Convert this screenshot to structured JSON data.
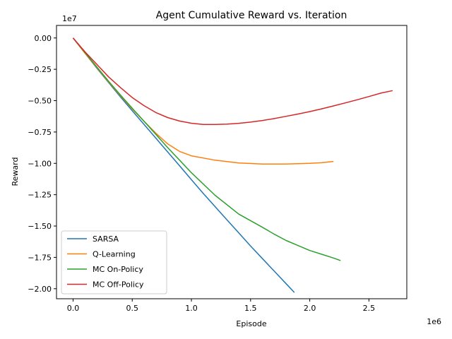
{
  "chart_data": {
    "type": "line",
    "title": "Agent Cumulative Reward vs. Iteration",
    "xlabel": "Episode",
    "ylabel": "Reward",
    "x_scale_label": "1e6",
    "y_scale_label": "1e7",
    "xlim": [
      -0.14,
      2.82
    ],
    "ylim": [
      -2.08,
      0.1
    ],
    "x_ticks": [
      0.0,
      0.5,
      1.0,
      1.5,
      2.0,
      2.5
    ],
    "x_tick_labels": [
      "0.0",
      "0.5",
      "1.0",
      "1.5",
      "2.0",
      "2.5"
    ],
    "y_ticks": [
      0.0,
      -0.25,
      -0.5,
      -0.75,
      -1.0,
      -1.25,
      -1.5,
      -1.75,
      -2.0
    ],
    "y_tick_labels": [
      "0.00",
      "−0.25",
      "−0.50",
      "−0.75",
      "−1.00",
      "−1.25",
      "−1.50",
      "−1.75",
      "−2.00"
    ],
    "grid": false,
    "legend_position": "lower-left",
    "series": [
      {
        "name": "SARSA",
        "color": "#1f77b4",
        "x": [
          0,
          0.1,
          0.2,
          0.3,
          0.4,
          0.5,
          0.6,
          0.7,
          0.8,
          0.9,
          1.0,
          1.1,
          1.2,
          1.3,
          1.4,
          1.5,
          1.6,
          1.7,
          1.8,
          1.87
        ],
        "y": [
          0,
          -0.12,
          -0.24,
          -0.355,
          -0.47,
          -0.58,
          -0.69,
          -0.8,
          -0.91,
          -1.02,
          -1.13,
          -1.24,
          -1.345,
          -1.45,
          -1.555,
          -1.66,
          -1.76,
          -1.86,
          -1.96,
          -2.03
        ]
      },
      {
        "name": "Q-Learning",
        "color": "#ff7f0e",
        "x": [
          0,
          0.1,
          0.2,
          0.3,
          0.4,
          0.5,
          0.6,
          0.7,
          0.8,
          0.9,
          1.0,
          1.2,
          1.4,
          1.6,
          1.8,
          2.0,
          2.1,
          2.2
        ],
        "y": [
          0,
          -0.12,
          -0.235,
          -0.35,
          -0.46,
          -0.565,
          -0.665,
          -0.76,
          -0.845,
          -0.905,
          -0.94,
          -0.975,
          -0.997,
          -1.005,
          -1.005,
          -1.0,
          -0.995,
          -0.985
        ]
      },
      {
        "name": "MC On-Policy",
        "color": "#2ca02c",
        "x": [
          0,
          0.1,
          0.2,
          0.3,
          0.4,
          0.5,
          0.6,
          0.7,
          0.8,
          0.9,
          1.0,
          1.2,
          1.4,
          1.6,
          1.7,
          1.8,
          1.9,
          2.0,
          2.1,
          2.2,
          2.26
        ],
        "y": [
          0,
          -0.115,
          -0.23,
          -0.345,
          -0.455,
          -0.56,
          -0.665,
          -0.77,
          -0.875,
          -0.975,
          -1.075,
          -1.255,
          -1.405,
          -1.51,
          -1.565,
          -1.615,
          -1.655,
          -1.695,
          -1.725,
          -1.755,
          -1.775
        ]
      },
      {
        "name": "MC Off-Policy",
        "color": "#d62728",
        "x": [
          0,
          0.1,
          0.2,
          0.3,
          0.4,
          0.5,
          0.6,
          0.7,
          0.8,
          0.9,
          1.0,
          1.1,
          1.2,
          1.3,
          1.4,
          1.5,
          1.6,
          1.7,
          1.8,
          1.9,
          2.0,
          2.1,
          2.2,
          2.3,
          2.4,
          2.5,
          2.6,
          2.7
        ],
        "y": [
          0,
          -0.11,
          -0.21,
          -0.31,
          -0.395,
          -0.475,
          -0.54,
          -0.595,
          -0.635,
          -0.663,
          -0.68,
          -0.69,
          -0.69,
          -0.687,
          -0.681,
          -0.671,
          -0.658,
          -0.643,
          -0.625,
          -0.607,
          -0.587,
          -0.565,
          -0.542,
          -0.518,
          -0.493,
          -0.467,
          -0.44,
          -0.42
        ]
      }
    ]
  }
}
